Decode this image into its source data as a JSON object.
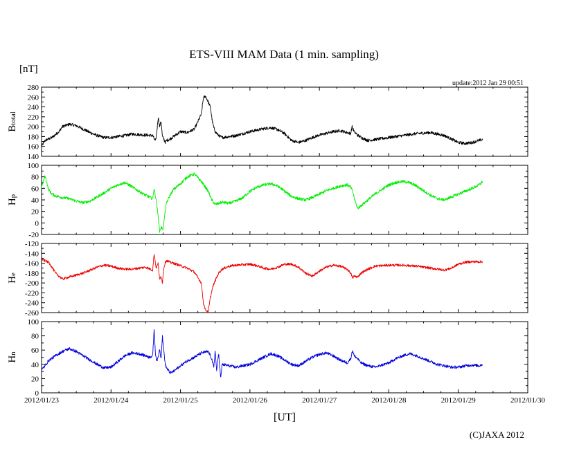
{
  "title": "ETS-VIII MAM Data (1 min. sampling)",
  "unit_label": "[nT]",
  "update_text": "update:2012 Jan 29 00:51",
  "x_axis_label": "[UT]",
  "copyright": "(C)JAXA 2012",
  "colors": {
    "btotal": "#000000",
    "hp": "#00ee00",
    "he": "#ee0000",
    "hn": "#0000dd"
  },
  "chart_data": {
    "type": "line",
    "x_ticks": [
      "2012/01/23",
      "2012/01/24",
      "2012/01/25",
      "2012/01/26",
      "2012/01/27",
      "2012/01/28",
      "2012/01/29",
      "2012/01/30"
    ],
    "x_unit": "days since 2012/01/23 00:00 UT",
    "xlim": [
      0,
      7
    ],
    "panels": [
      {
        "name": "Btotal",
        "label_big": "B",
        "label_sub": "total",
        "color_key": "btotal",
        "ylim": [
          140,
          280
        ],
        "yticks": [
          140,
          160,
          180,
          200,
          220,
          240,
          260,
          280
        ],
        "noise": 3,
        "x": [
          0,
          0.05,
          0.15,
          0.25,
          0.3,
          0.4,
          0.5,
          0.6,
          0.7,
          0.8,
          0.9,
          1.0,
          1.1,
          1.2,
          1.3,
          1.4,
          1.5,
          1.6,
          1.62,
          1.64,
          1.66,
          1.68,
          1.7,
          1.72,
          1.74,
          1.76,
          1.78,
          1.8,
          1.85,
          1.9,
          2.0,
          2.1,
          2.2,
          2.3,
          2.33,
          2.36,
          2.4,
          2.43,
          2.46,
          2.48,
          2.5,
          2.55,
          2.6,
          2.7,
          2.8,
          3.0,
          3.2,
          3.3,
          3.4,
          3.5,
          3.6,
          3.7,
          3.8,
          3.9,
          4.0,
          4.2,
          4.3,
          4.4,
          4.45,
          4.47,
          4.5,
          4.55,
          4.6,
          4.7,
          4.8,
          5.0,
          5.2,
          5.4,
          5.6,
          5.8,
          5.9,
          6.0,
          6.1,
          6.2,
          6.3,
          6.35
        ],
        "y": [
          160,
          172,
          178,
          190,
          200,
          205,
          202,
          195,
          188,
          182,
          178,
          178,
          180,
          182,
          185,
          184,
          183,
          182,
          176,
          170,
          190,
          220,
          200,
          212,
          180,
          175,
          168,
          172,
          175,
          180,
          190,
          188,
          195,
          225,
          258,
          262,
          250,
          240,
          210,
          198,
          190,
          182,
          178,
          180,
          182,
          190,
          196,
          198,
          194,
          186,
          172,
          168,
          172,
          178,
          183,
          190,
          192,
          188,
          186,
          200,
          190,
          183,
          178,
          172,
          174,
          178,
          182,
          186,
          188,
          182,
          175,
          168,
          166,
          168,
          172,
          174
        ]
      },
      {
        "name": "Hp",
        "label_big": "H",
        "label_sub": "p",
        "color_key": "hp",
        "ylim": [
          -20,
          100
        ],
        "yticks": [
          -20,
          0,
          20,
          40,
          60,
          80,
          100
        ],
        "noise": 2.5,
        "x": [
          0,
          0.05,
          0.1,
          0.15,
          0.2,
          0.3,
          0.4,
          0.5,
          0.6,
          0.7,
          0.8,
          0.9,
          1.0,
          1.1,
          1.2,
          1.3,
          1.4,
          1.5,
          1.6,
          1.62,
          1.65,
          1.68,
          1.7,
          1.72,
          1.75,
          1.78,
          1.8,
          1.85,
          1.9,
          2.0,
          2.1,
          2.2,
          2.3,
          2.4,
          2.45,
          2.5,
          2.55,
          2.6,
          2.7,
          2.8,
          2.9,
          3.0,
          3.1,
          3.2,
          3.3,
          3.4,
          3.5,
          3.6,
          3.7,
          3.8,
          3.9,
          4.0,
          4.1,
          4.2,
          4.3,
          4.4,
          4.45,
          4.48,
          4.5,
          4.55,
          4.6,
          4.7,
          4.8,
          4.9,
          5.0,
          5.1,
          5.2,
          5.3,
          5.4,
          5.5,
          5.6,
          5.7,
          5.8,
          5.9,
          6.0,
          6.1,
          6.2,
          6.3,
          6.35
        ],
        "y": [
          62,
          82,
          58,
          50,
          47,
          44,
          42,
          38,
          35,
          38,
          45,
          52,
          60,
          66,
          70,
          63,
          55,
          48,
          42,
          60,
          40,
          10,
          -15,
          -8,
          -10,
          20,
          35,
          48,
          58,
          68,
          80,
          85,
          72,
          55,
          40,
          32,
          34,
          36,
          34,
          38,
          44,
          55,
          62,
          66,
          68,
          64,
          55,
          46,
          42,
          40,
          44,
          50,
          56,
          60,
          64,
          66,
          62,
          55,
          44,
          25,
          30,
          40,
          50,
          58,
          66,
          70,
          72,
          70,
          64,
          56,
          48,
          42,
          40,
          45,
          50,
          55,
          60,
          66,
          72
        ]
      },
      {
        "name": "He",
        "label_big": "H",
        "label_sub": "e",
        "color_key": "he",
        "ylim": [
          -260,
          -120
        ],
        "yticks": [
          -260,
          -240,
          -220,
          -200,
          -180,
          -160,
          -140,
          -120
        ],
        "noise": 2.5,
        "x": [
          0,
          0.05,
          0.1,
          0.15,
          0.2,
          0.3,
          0.4,
          0.5,
          0.6,
          0.7,
          0.8,
          0.9,
          1.0,
          1.1,
          1.2,
          1.3,
          1.4,
          1.5,
          1.6,
          1.62,
          1.65,
          1.68,
          1.7,
          1.72,
          1.74,
          1.76,
          1.78,
          1.8,
          1.85,
          1.9,
          2.0,
          2.1,
          2.2,
          2.3,
          2.33,
          2.36,
          2.4,
          2.43,
          2.46,
          2.5,
          2.55,
          2.6,
          2.7,
          2.8,
          3.0,
          3.1,
          3.2,
          3.3,
          3.4,
          3.5,
          3.6,
          3.7,
          3.8,
          3.9,
          4.0,
          4.1,
          4.2,
          4.3,
          4.4,
          4.45,
          4.48,
          4.5,
          4.55,
          4.6,
          4.7,
          4.8,
          5.0,
          5.2,
          5.4,
          5.6,
          5.8,
          5.9,
          6.0,
          6.1,
          6.2,
          6.35
        ],
        "y": [
          -152,
          -155,
          -158,
          -168,
          -180,
          -192,
          -188,
          -184,
          -180,
          -174,
          -168,
          -164,
          -166,
          -170,
          -172,
          -172,
          -170,
          -168,
          -174,
          -140,
          -170,
          -160,
          -195,
          -185,
          -200,
          -170,
          -158,
          -155,
          -158,
          -160,
          -165,
          -170,
          -178,
          -200,
          -240,
          -255,
          -258,
          -230,
          -210,
          -195,
          -180,
          -172,
          -166,
          -164,
          -162,
          -165,
          -170,
          -172,
          -168,
          -162,
          -162,
          -168,
          -180,
          -186,
          -176,
          -168,
          -164,
          -166,
          -172,
          -180,
          -190,
          -186,
          -188,
          -180,
          -172,
          -166,
          -164,
          -164,
          -166,
          -170,
          -174,
          -170,
          -162,
          -158,
          -157,
          -157
        ]
      },
      {
        "name": "Hn",
        "label_big": "H",
        "label_sub": "n",
        "color_key": "hn",
        "ylim": [
          0,
          100
        ],
        "yticks": [
          0,
          20,
          40,
          60,
          80,
          100
        ],
        "noise": 2,
        "x": [
          0,
          0.05,
          0.1,
          0.2,
          0.3,
          0.4,
          0.5,
          0.6,
          0.7,
          0.8,
          0.9,
          1.0,
          1.1,
          1.2,
          1.3,
          1.4,
          1.5,
          1.55,
          1.6,
          1.62,
          1.64,
          1.66,
          1.68,
          1.7,
          1.72,
          1.74,
          1.76,
          1.78,
          1.8,
          1.85,
          1.9,
          2.0,
          2.1,
          2.2,
          2.3,
          2.4,
          2.45,
          2.48,
          2.5,
          2.52,
          2.55,
          2.58,
          2.6,
          2.7,
          2.8,
          3.0,
          3.1,
          3.2,
          3.3,
          3.4,
          3.5,
          3.6,
          3.7,
          3.8,
          3.9,
          4.0,
          4.1,
          4.2,
          4.3,
          4.4,
          4.45,
          4.48,
          4.5,
          4.55,
          4.6,
          4.7,
          4.8,
          5.0,
          5.1,
          5.2,
          5.3,
          5.4,
          5.5,
          5.6,
          5.7,
          5.8,
          5.9,
          6.0,
          6.1,
          6.2,
          6.3,
          6.35
        ],
        "y": [
          32,
          38,
          45,
          52,
          58,
          62,
          58,
          52,
          46,
          40,
          35,
          36,
          44,
          52,
          56,
          55,
          52,
          50,
          52,
          90,
          55,
          45,
          50,
          62,
          48,
          80,
          60,
          40,
          35,
          28,
          30,
          38,
          45,
          50,
          56,
          58,
          48,
          35,
          60,
          30,
          55,
          20,
          40,
          38,
          36,
          40,
          45,
          50,
          55,
          52,
          46,
          40,
          38,
          44,
          50,
          54,
          56,
          52,
          46,
          42,
          48,
          60,
          52,
          48,
          42,
          38,
          36,
          42,
          48,
          52,
          55,
          52,
          48,
          44,
          40,
          38,
          36,
          36,
          38,
          39,
          38,
          40
        ]
      }
    ]
  }
}
